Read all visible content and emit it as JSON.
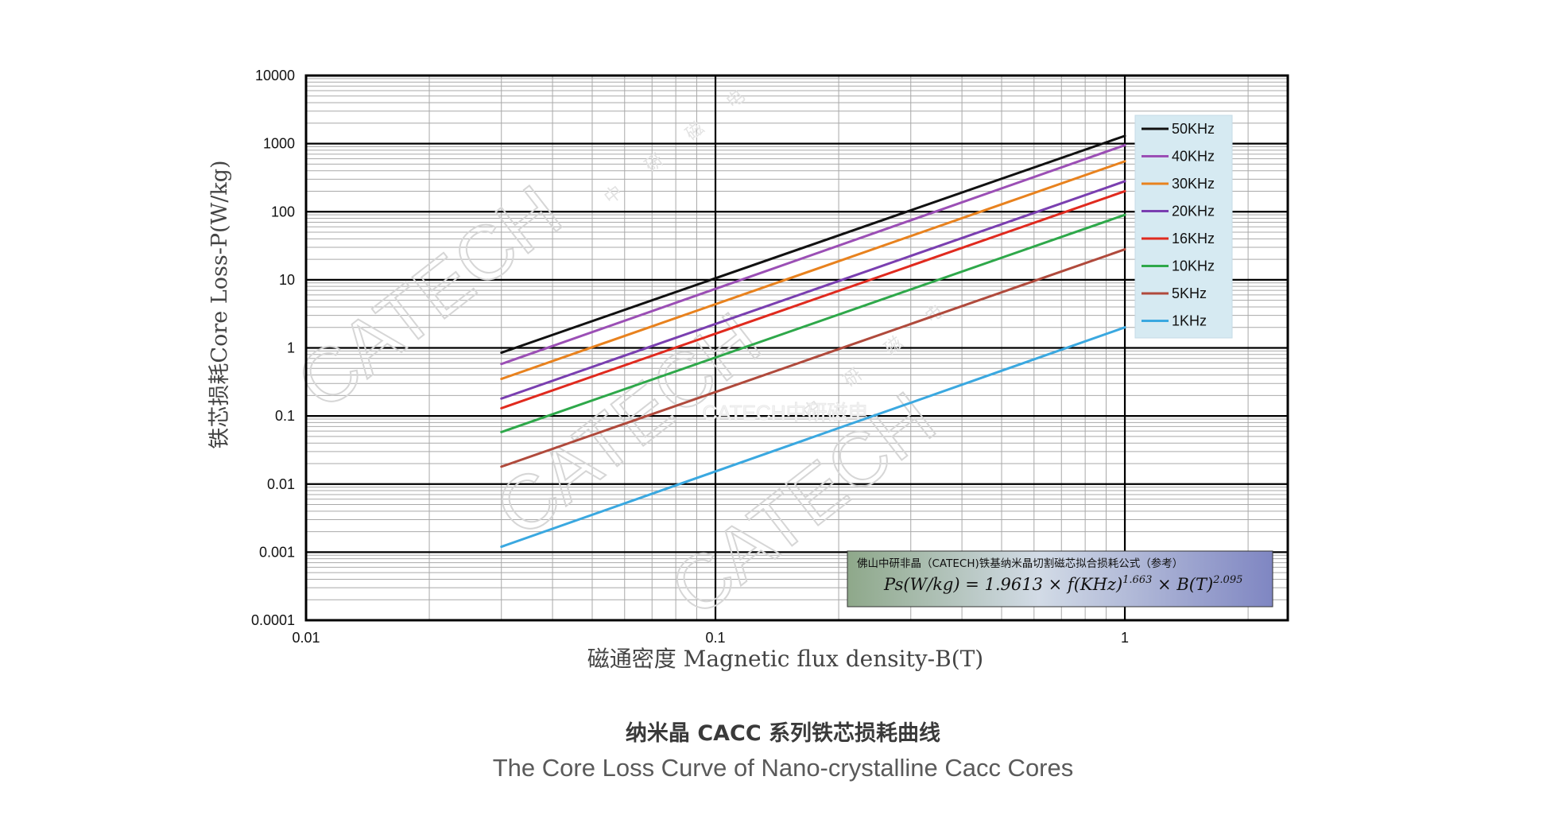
{
  "chart_data": {
    "type": "line",
    "xlabel": "磁通密度 Magnetic flux density-B(T)",
    "ylabel": "铁芯损耗Core Loss-P(W/kg)",
    "x_scale": "log",
    "y_scale": "log",
    "xlim": [
      0.01,
      2.5
    ],
    "ylim": [
      0.0001,
      10000
    ],
    "x_ticks": [
      "0.01",
      "0.1",
      "1"
    ],
    "y_ticks": [
      "10000",
      "1000",
      "100",
      "10",
      "1",
      "0.1",
      "0.01",
      "0.001",
      "0.0001"
    ],
    "grid": true,
    "legend_position": "top-right",
    "series": [
      {
        "name": "50KHz",
        "color": "#111111",
        "x": [
          0.03,
          1
        ],
        "y": [
          0.85,
          1300
        ]
      },
      {
        "name": "40KHz",
        "color": "#9b4fb5",
        "x": [
          0.03,
          1
        ],
        "y": [
          0.58,
          950
        ]
      },
      {
        "name": "30KHz",
        "color": "#e8821e",
        "x": [
          0.03,
          1
        ],
        "y": [
          0.35,
          550
        ]
      },
      {
        "name": "20KHz",
        "color": "#7a3fb0",
        "x": [
          0.03,
          1
        ],
        "y": [
          0.18,
          280
        ]
      },
      {
        "name": "16KHz",
        "color": "#e02a1e",
        "x": [
          0.03,
          1
        ],
        "y": [
          0.13,
          200
        ]
      },
      {
        "name": "10KHz",
        "color": "#2ea84a",
        "x": [
          0.03,
          1
        ],
        "y": [
          0.058,
          90
        ]
      },
      {
        "name": "5KHz",
        "color": "#b04a3c",
        "x": [
          0.03,
          1
        ],
        "y": [
          0.018,
          28
        ]
      },
      {
        "name": "1KHz",
        "color": "#3aa8e0",
        "x": [
          0.03,
          1
        ],
        "y": [
          0.0012,
          2
        ]
      }
    ],
    "annotations": {
      "formula_title": "佛山中研非晶（CATECH)铁基纳米晶切割磁芯拟合损耗公式（参考）",
      "formula_text": "Ps(W/kg) = 1.9613 × f(KHz)",
      "formula_exp1": "1.663",
      "formula_mid": " × B(T)",
      "formula_exp2": "2.095"
    }
  },
  "watermarks": {
    "brand": "CATECH",
    "cn": "中 研 磁 电",
    "center_text": "CATECH中研磁电"
  },
  "caption": {
    "cn": "纳米晶 CACC 系列铁芯损耗曲线",
    "en": "The Core Loss Curve of Nano-crystalline Cacc Cores"
  }
}
